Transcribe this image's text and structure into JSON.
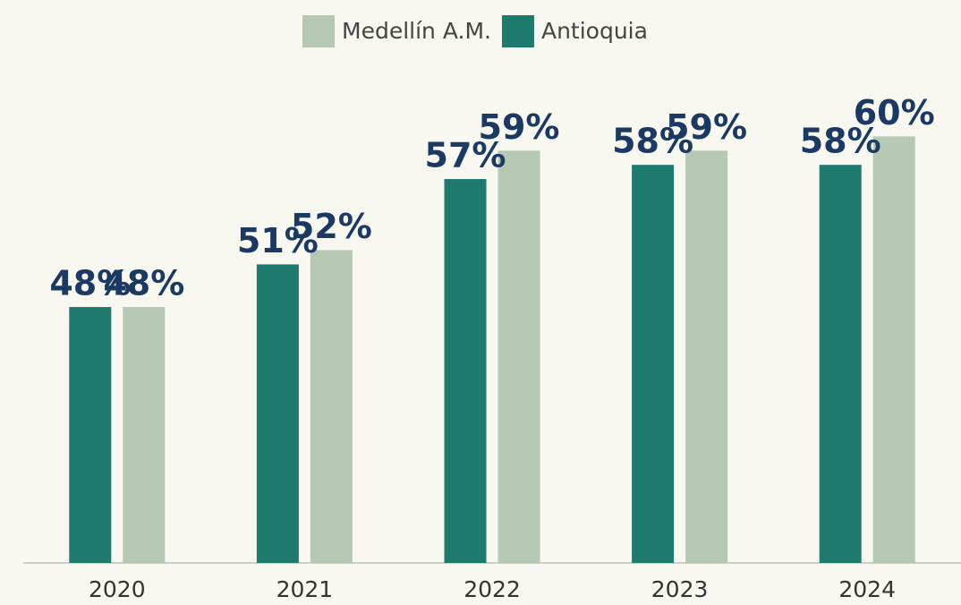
{
  "chart_data": {
    "type": "bar",
    "categories": [
      "2020",
      "2021",
      "2022",
      "2023",
      "2024"
    ],
    "series": [
      {
        "name": "Medellín A.M.",
        "color": "#b4c8b4",
        "values": [
          48,
          52,
          59,
          59,
          60
        ],
        "value_labels": [
          "48%",
          "52%",
          "59%",
          "59%",
          "60%"
        ]
      },
      {
        "name": "Antioquia",
        "color": "#1f7a6e",
        "values": [
          48,
          51,
          57,
          58,
          58
        ],
        "value_labels": [
          "48%",
          "51%",
          "57%",
          "58%",
          "58%"
        ]
      }
    ],
    "ylim": [
      30,
      65
    ],
    "legend": "top"
  }
}
